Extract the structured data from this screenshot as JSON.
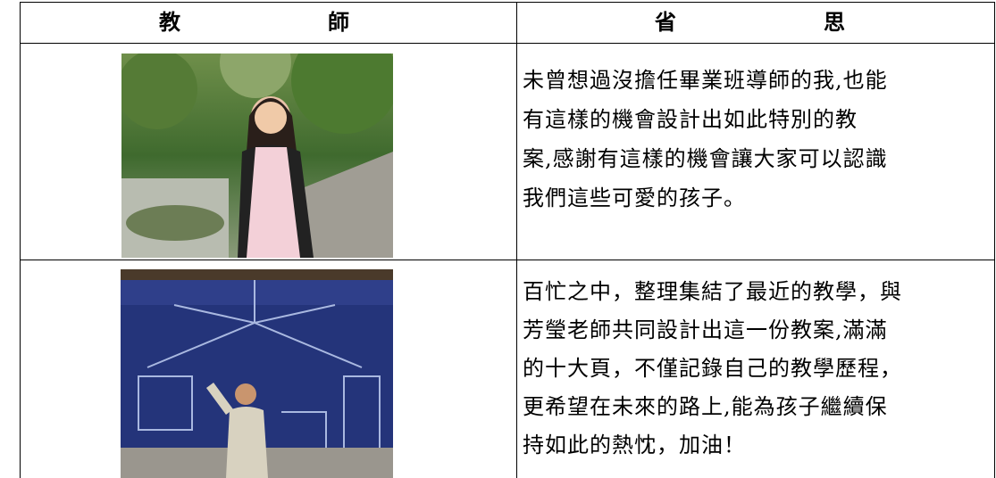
{
  "table": {
    "header": [
      "教 師",
      "省 思"
    ],
    "rows": [
      {
        "reflection": [
          "未曾想過沒擔任畢業班導師的我,也能",
          "有這樣的機會設計出如此特別的教",
          "案,感謝有這樣的機會讓大家可以認識",
          "我們這些可愛的孩子。"
        ]
      },
      {
        "reflection": [
          "百忙之中，整理集結了最近的教學，與",
          "芳瑩老師共同設計出這一份教案,滿滿",
          "的十大頁，不僅記錄自己的教學歷程，",
          "更希望在未來的路上,能為孩子繼續保",
          "持如此的熱忱，加油！"
        ]
      }
    ]
  }
}
